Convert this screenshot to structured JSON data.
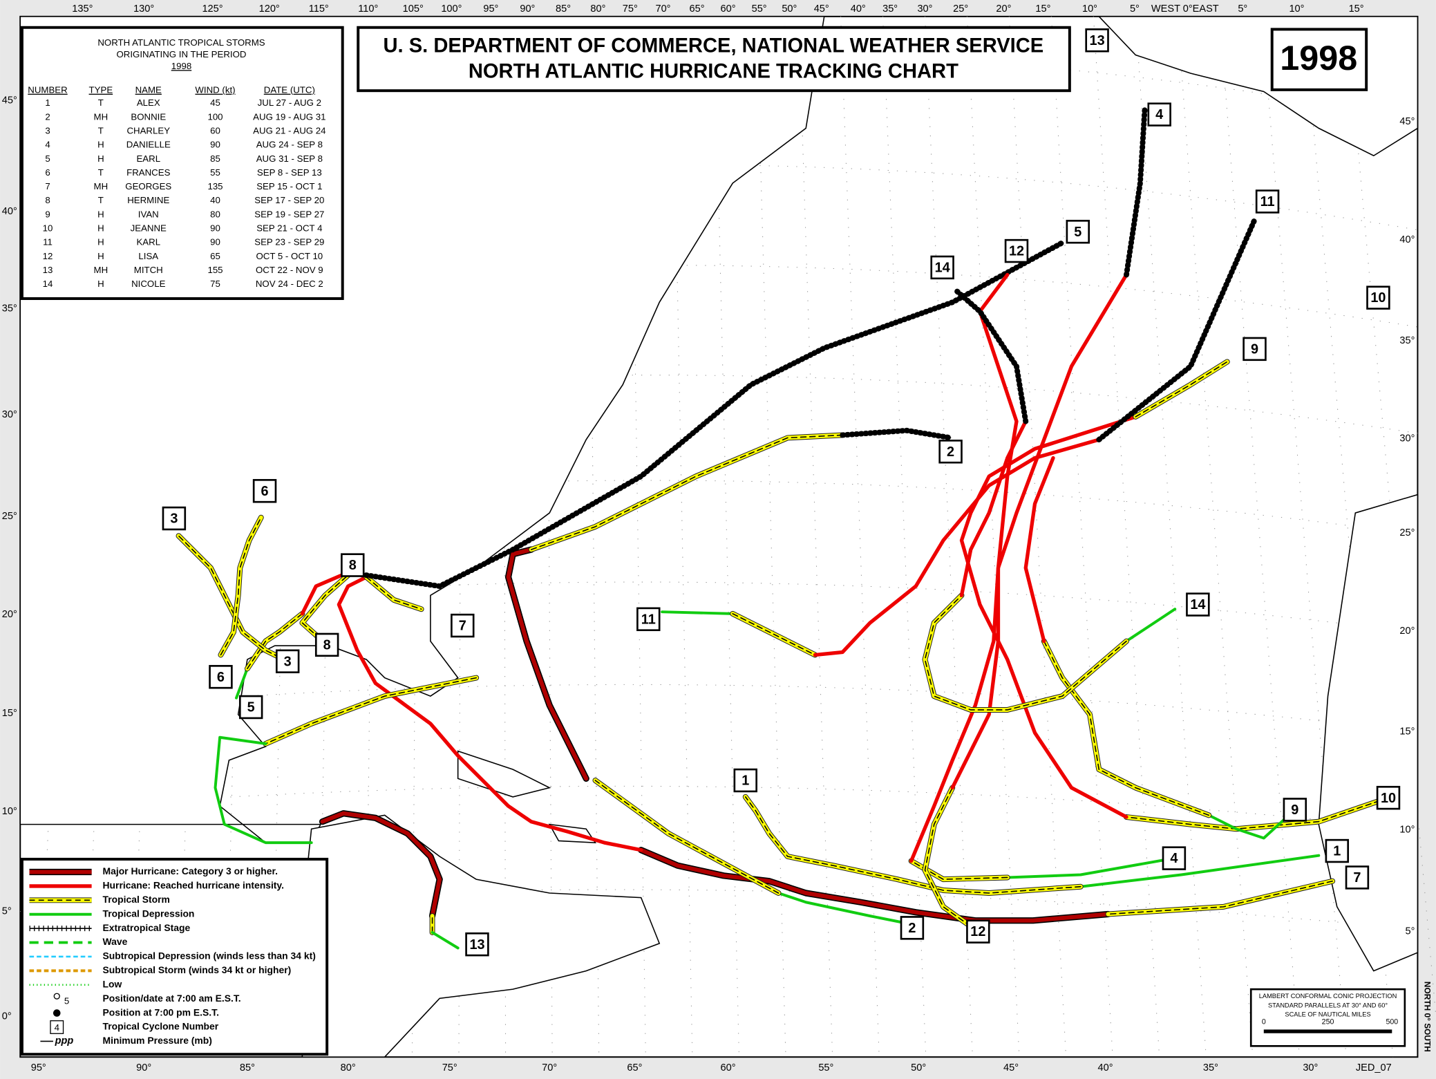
{
  "header": {
    "title_line1": "U. S. DEPARTMENT OF COMMERCE, NATIONAL WEATHER SERVICE",
    "title_line2": "NORTH ATLANTIC HURRICANE TRACKING CHART",
    "year": "1998"
  },
  "storm_table": {
    "title_lines": [
      "NORTH ATLANTIC TROPICAL STORMS",
      "ORIGINATING IN THE PERIOD",
      "1998"
    ],
    "columns": [
      "NUMBER",
      "TYPE",
      "NAME",
      "WIND (kt)",
      "DATE (UTC)"
    ],
    "rows": [
      [
        1,
        "T",
        "ALEX",
        45,
        "JUL 27 - AUG  2"
      ],
      [
        2,
        "MH",
        "BONNIE",
        100,
        "AUG 19 - AUG 31"
      ],
      [
        3,
        "T",
        "CHARLEY",
        60,
        "AUG 21 - AUG 24"
      ],
      [
        4,
        "H",
        "DANIELLE",
        90,
        "AUG 24 - SEP  8"
      ],
      [
        5,
        "H",
        "EARL",
        85,
        "AUG 31 - SEP  8"
      ],
      [
        6,
        "T",
        "FRANCES",
        55,
        "SEP  8 - SEP 13"
      ],
      [
        7,
        "MH",
        "GEORGES",
        135,
        "SEP 15 - OCT  1"
      ],
      [
        8,
        "T",
        "HERMINE",
        40,
        "SEP 17 - SEP 20"
      ],
      [
        9,
        "H",
        "IVAN",
        80,
        "SEP 19 - SEP 27"
      ],
      [
        10,
        "H",
        "JEANNE",
        90,
        "SEP 21 - OCT  4"
      ],
      [
        11,
        "H",
        "KARL",
        90,
        "SEP 23 - SEP 29"
      ],
      [
        12,
        "H",
        "LISA",
        65,
        "OCT  5 - OCT 10"
      ],
      [
        13,
        "MH",
        "MITCH",
        155,
        "OCT 22 - NOV  9"
      ],
      [
        14,
        "H",
        "NICOLE",
        75,
        "NOV 24 - DEC  2"
      ]
    ]
  },
  "legend": {
    "items": [
      "Major Hurricane: Category 3 or higher.",
      "Hurricane: Reached hurricane intensity.",
      "Tropical Storm",
      "Tropical Depression",
      "Extratropical Stage",
      "Wave",
      "Subtropical Depression (winds less than 34 kt)",
      "Subtropical Storm (winds 34 kt or higher)",
      "Low",
      "Position/date at 7:00 am E.S.T.",
      "Position at 7:00 pm E.S.T.",
      "Tropical Cyclone Number",
      "Minimum Pressure (mb)"
    ],
    "symbol_labels": [
      "5",
      "4",
      "ppp"
    ]
  },
  "map": {
    "longitude_top": [
      "135°",
      "130°",
      "125°",
      "120°",
      "115°",
      "110°",
      "105°",
      "100°",
      "95°",
      "90°",
      "85°",
      "80°",
      "75°",
      "70°",
      "65°",
      "60°",
      "55°",
      "50°",
      "45°",
      "40°",
      "35°",
      "30°",
      "25°",
      "20°",
      "15°",
      "10°",
      "5°",
      "WEST 0°EAST",
      "5°",
      "10°",
      "15°"
    ],
    "longitude_bottom": [
      "95°",
      "90°",
      "85°",
      "80°",
      "75°",
      "70°",
      "65°",
      "60°",
      "55°",
      "50°",
      "45°",
      "40°",
      "35°",
      "30°",
      "JED_07"
    ],
    "latitude_left": [
      "45°",
      "40°",
      "35°",
      "30°",
      "25°",
      "20°",
      "15°",
      "10°",
      "5°",
      "0°"
    ],
    "latitude_right": [
      "45°",
      "40°",
      "35°",
      "30°",
      "25°",
      "20°",
      "15°",
      "10°",
      "5°"
    ],
    "storm_labels": [
      "13",
      "4",
      "11",
      "5",
      "12",
      "14",
      "10",
      "9",
      "2",
      "6",
      "3",
      "8",
      "11",
      "7",
      "14",
      "6",
      "3",
      "8",
      "5",
      "1",
      "9",
      "10",
      "1",
      "4",
      "7",
      "2",
      "12",
      "13"
    ],
    "projection_note": [
      "LAMBERT CONFORMAL CONIC PROJECTION",
      "STANDARD PARALLELS AT 30° AND 60°",
      "SCALE OF NAUTICAL MILES"
    ],
    "scale_labels": [
      "0",
      "250",
      "500"
    ],
    "orientation": "NORTH 0° SOUTH"
  }
}
